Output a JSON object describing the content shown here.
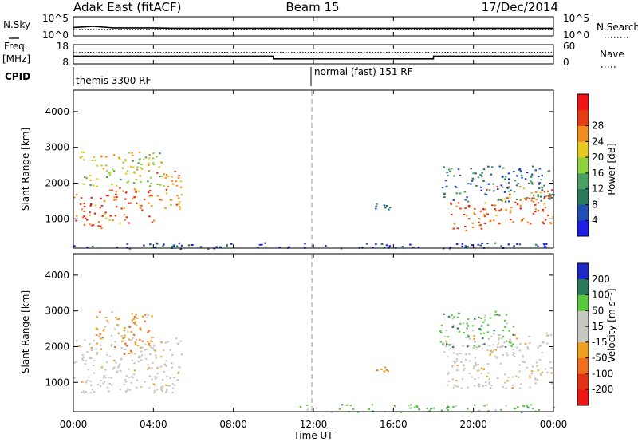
{
  "header": {
    "station": "Adak East (fitACF)",
    "beam": "Beam 15",
    "date": "17/Dec/2014"
  },
  "panel_labels": {
    "nsky": "N.Sky",
    "nsearch": "N.Search",
    "freq": "Freq.",
    "mhz": "[MHz]",
    "nave": "Nave",
    "cpid": "CPID",
    "nsky_top": "10^5",
    "nsky_bottom": "10^0",
    "freq_top": "18",
    "freq_bottom": "8",
    "nave_top": "60",
    "nave_bottom": "0"
  },
  "cpid_modes": [
    {
      "start": 0,
      "end": 12,
      "label": "themis 3300 RF"
    },
    {
      "start": 12,
      "end": 24,
      "label": "normal (fast) 151 RF"
    }
  ],
  "colors": {
    "power_scale": [
      "#1e1ee6",
      "#1e50b4",
      "#2a7a5a",
      "#4aa063",
      "#8cd23c",
      "#e6c81e",
      "#f08c1e",
      "#e63c14",
      "#f01414"
    ],
    "velocity_scale": [
      "#1e28c8",
      "#2a7a5a",
      "#5ac83c",
      "#c8c8c0",
      "#c8c8c0",
      "#f0a01e",
      "#f06e1e",
      "#e63214",
      "#f01414"
    ],
    "ground_scatter": "#c8c8c0"
  },
  "chart_data": [
    {
      "type": "line",
      "title": "N.Sky / N.Search",
      "x": [
        0,
        1,
        2,
        3,
        4,
        5,
        6,
        7,
        8,
        9,
        10,
        11,
        12,
        13,
        14,
        15,
        16,
        17,
        18,
        19,
        20,
        21,
        22,
        23,
        24
      ],
      "series": [
        {
          "name": "N.Sky",
          "values": [
            2.2,
            2.5,
            2.1,
            2.1,
            2.1,
            2.0,
            2.0,
            2.0,
            2.0,
            2.0,
            2.0,
            2.0,
            2.0,
            2.0,
            2.0,
            2.0,
            2.0,
            2.0,
            2.0,
            2.0,
            2.0,
            2.0,
            2.0,
            2.0,
            2.0
          ]
        },
        {
          "name": "N.Search",
          "values": [
            1.7,
            1.7,
            1.7,
            1.7,
            1.7,
            1.7,
            1.7,
            1.7,
            1.7,
            1.7,
            1.7,
            1.7,
            1.7,
            1.7,
            1.7,
            1.7,
            1.7,
            1.7,
            1.7,
            1.7,
            1.7,
            1.7,
            1.7,
            1.7,
            1.7
          ]
        }
      ],
      "xlabel": "",
      "ylabel": "",
      "ylim": [
        0,
        5
      ]
    },
    {
      "type": "line",
      "title": "Freq / Nave",
      "x": [
        0,
        10,
        10,
        18,
        18,
        24
      ],
      "series": [
        {
          "name": "Freq.",
          "values": [
            12.0,
            12.0,
            10.6,
            10.6,
            12.0,
            12.0
          ]
        },
        {
          "name": "Nave",
          "values": [
            14,
            14,
            14,
            14,
            14,
            14
          ]
        }
      ],
      "xlabel": "",
      "ylabel": "",
      "ylim": [
        8,
        18
      ]
    },
    {
      "type": "heatmap",
      "title": "Power",
      "x": [
        0,
        24
      ],
      "xlabel": "Time UT",
      "ylabel": "Slant Range [km]",
      "ylim": [
        180,
        4600
      ],
      "x_ticks": [
        "00:00",
        "04:00",
        "08:00",
        "12:00",
        "16:00",
        "20:00",
        "00:00"
      ],
      "y_ticks": [
        1000,
        2000,
        3000,
        4000
      ],
      "colorbar": {
        "label": "Power [dB]",
        "ticks": [
          "4",
          "8",
          "12",
          "16",
          "20",
          "24",
          "28"
        ],
        "range": [
          0,
          30
        ]
      },
      "regions": [
        {
          "time": [
            0.0,
            1.5
          ],
          "range": [
            700,
            1700
          ],
          "value": "28"
        },
        {
          "time": [
            1.5,
            4.0
          ],
          "range": [
            900,
            1900
          ],
          "value": "28"
        },
        {
          "time": [
            4.0,
            5.4
          ],
          "range": [
            1300,
            2400
          ],
          "value": "24"
        },
        {
          "time": [
            0.3,
            4.5
          ],
          "range": [
            1900,
            2900
          ],
          "value": "20"
        },
        {
          "time": [
            15.0,
            15.8
          ],
          "range": [
            1250,
            1450
          ],
          "value": "8"
        },
        {
          "time": [
            18.8,
            20.5
          ],
          "range": [
            700,
            1500
          ],
          "value": "28"
        },
        {
          "time": [
            20.5,
            24.0
          ],
          "range": [
            850,
            1950
          ],
          "value": "28"
        },
        {
          "time": [
            18.4,
            24.0
          ],
          "range": [
            1500,
            2500
          ],
          "value": "8"
        },
        {
          "time": [
            0.0,
            24.0
          ],
          "range": [
            180,
            350
          ],
          "value": "4"
        }
      ]
    },
    {
      "type": "heatmap",
      "title": "Velocity",
      "x": [
        0,
        24
      ],
      "xlabel": "Time UT",
      "ylabel": "Slant Range [km]",
      "ylim": [
        180,
        4600
      ],
      "x_ticks": [
        "00:00",
        "04:00",
        "08:00",
        "12:00",
        "16:00",
        "20:00",
        "00:00"
      ],
      "y_ticks": [
        1000,
        2000,
        3000,
        4000
      ],
      "colorbar": {
        "label": "Velocity [m s⁻¹]",
        "ticks": [
          "200",
          "100",
          "50",
          "15",
          "-15",
          "-50",
          "-100",
          "-200"
        ],
        "range": [
          -250,
          250
        ]
      },
      "regions": [
        {
          "time": [
            0.0,
            5.4
          ],
          "range": [
            700,
            2300
          ],
          "value": "ground scatter"
        },
        {
          "time": [
            1.0,
            4.0
          ],
          "range": [
            1800,
            3000
          ],
          "value": "-50"
        },
        {
          "time": [
            15.1,
            15.8
          ],
          "range": [
            1250,
            1450
          ],
          "value": "-50"
        },
        {
          "time": [
            18.5,
            24.0
          ],
          "range": [
            850,
            2400
          ],
          "value": "ground scatter"
        },
        {
          "time": [
            18.2,
            22.0
          ],
          "range": [
            2000,
            3000
          ],
          "value": "50"
        },
        {
          "time": [
            11.0,
            24.0
          ],
          "range": [
            180,
            400
          ],
          "value": "50"
        }
      ]
    }
  ]
}
